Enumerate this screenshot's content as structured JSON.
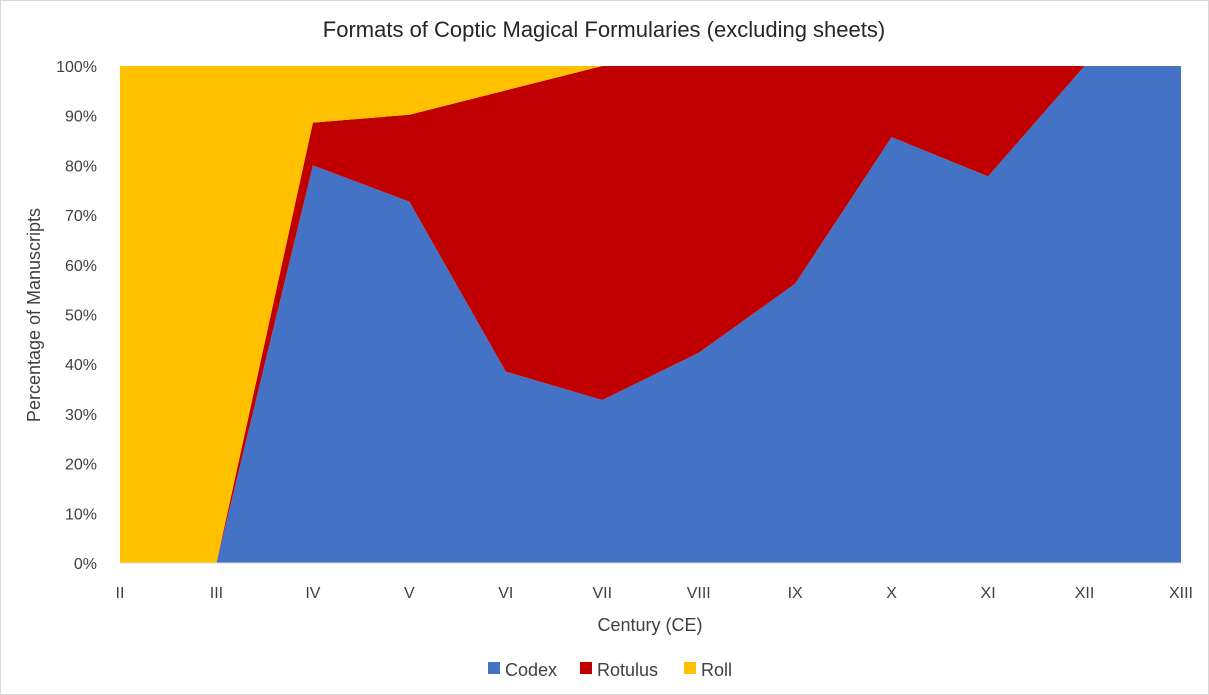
{
  "chart_data": {
    "type": "area",
    "stacked": true,
    "percent_stacked": true,
    "title": "Formats of Coptic Magical Formularies (excluding sheets)",
    "xlabel": "Century (CE)",
    "ylabel": "Percentage of Manuscripts",
    "categories": [
      "II",
      "III",
      "IV",
      "V",
      "VI",
      "VII",
      "VIII",
      "IX",
      "X",
      "XI",
      "XII",
      "XIII"
    ],
    "y_ticks": [
      "0%",
      "10%",
      "20%",
      "30%",
      "40%",
      "50%",
      "60%",
      "70%",
      "80%",
      "90%",
      "100%"
    ],
    "ylim": [
      0,
      100
    ],
    "grid": false,
    "legend_position": "bottom",
    "series": [
      {
        "name": "Codex",
        "color": "#4472C4",
        "values": [
          0,
          0,
          80,
          72.7,
          38.5,
          32.8,
          42.3,
          56.2,
          85.7,
          77.8,
          100,
          100
        ]
      },
      {
        "name": "Rotulus",
        "color": "#C00000",
        "values": [
          0,
          0,
          8.6,
          17.5,
          56.6,
          67.2,
          57.7,
          43.8,
          14.3,
          22.2,
          0,
          0
        ]
      },
      {
        "name": "Roll",
        "color": "#FFC000",
        "values": [
          100,
          100,
          11.4,
          9.8,
          4.9,
          0,
          0,
          0,
          0,
          0,
          0,
          0
        ]
      }
    ]
  }
}
